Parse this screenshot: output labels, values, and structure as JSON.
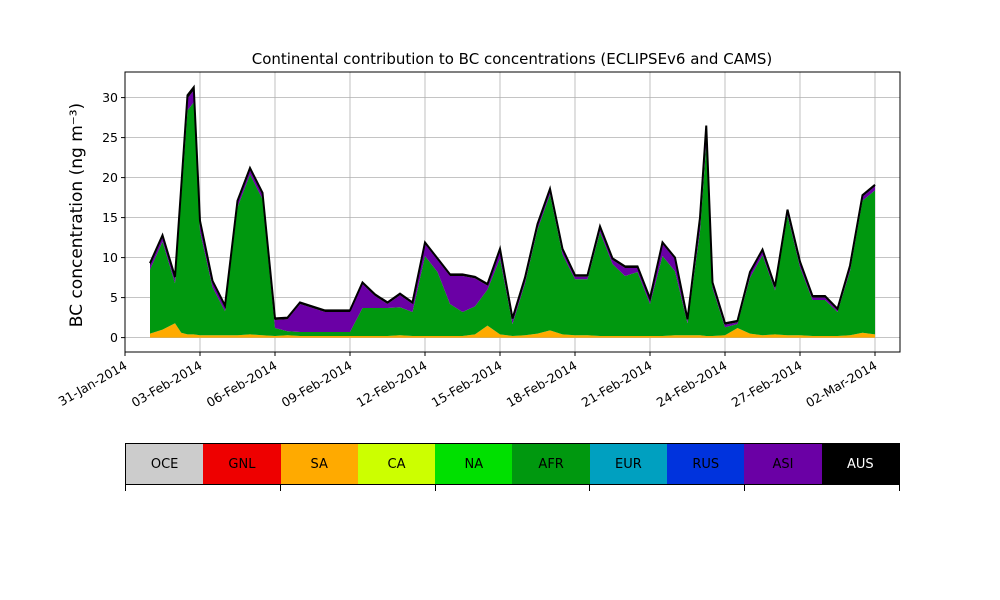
{
  "chart_data": {
    "type": "area",
    "title": "Continental contribution to BC concentrations (ECLIPSEv6 and CAMS)",
    "ylabel": "BC concentration (ng m⁻³)",
    "ylim": [
      -1.8,
      33.2
    ],
    "xlim": [
      "2014-01-31",
      "2014-03-03"
    ],
    "yticks": [
      0,
      5,
      10,
      15,
      20,
      25,
      30
    ],
    "xticks": [
      "31-Jan-2014",
      "03-Feb-2014",
      "06-Feb-2014",
      "09-Feb-2014",
      "12-Feb-2014",
      "15-Feb-2014",
      "18-Feb-2014",
      "21-Feb-2014",
      "24-Feb-2014",
      "27-Feb-2014",
      "02-Mar-2014"
    ],
    "grid": true,
    "x": [
      "2014-02-01",
      "2014-02-01 12:00",
      "2014-02-02",
      "2014-02-02 06:00",
      "2014-02-02 12:00",
      "2014-02-02 18:00",
      "2014-02-03",
      "2014-02-03 12:00",
      "2014-02-04",
      "2014-02-04 12:00",
      "2014-02-05",
      "2014-02-05 12:00",
      "2014-02-06",
      "2014-02-06 12:00",
      "2014-02-07",
      "2014-02-07 12:00",
      "2014-02-08",
      "2014-02-08 12:00",
      "2014-02-09",
      "2014-02-09 12:00",
      "2014-02-10",
      "2014-02-10 12:00",
      "2014-02-11",
      "2014-02-11 12:00",
      "2014-02-12",
      "2014-02-12 12:00",
      "2014-02-13",
      "2014-02-13 12:00",
      "2014-02-14",
      "2014-02-14 12:00",
      "2014-02-15",
      "2014-02-15 12:00",
      "2014-02-16",
      "2014-02-16 12:00",
      "2014-02-17",
      "2014-02-17 12:00",
      "2014-02-18",
      "2014-02-18 12:00",
      "2014-02-19",
      "2014-02-19 12:00",
      "2014-02-20",
      "2014-02-20 12:00",
      "2014-02-21",
      "2014-02-21 12:00",
      "2014-02-22",
      "2014-02-22 12:00",
      "2014-02-23",
      "2014-02-23 06:00",
      "2014-02-23 12:00",
      "2014-02-24",
      "2014-02-24 12:00",
      "2014-02-25",
      "2014-02-25 12:00",
      "2014-02-26",
      "2014-02-26 12:00",
      "2014-02-27",
      "2014-02-27 12:00",
      "2014-02-28",
      "2014-02-28 12:00",
      "2014-03-01",
      "2014-03-01 12:00",
      "2014-03-02"
    ],
    "series": [
      {
        "name": "SA",
        "color": "#ffaa00",
        "values": [
          0.5,
          1.0,
          1.8,
          0.6,
          0.4,
          0.4,
          0.3,
          0.3,
          0.3,
          0.3,
          0.4,
          0.3,
          0.2,
          0.3,
          0.2,
          0.2,
          0.2,
          0.2,
          0.2,
          0.2,
          0.2,
          0.2,
          0.3,
          0.2,
          0.2,
          0.2,
          0.2,
          0.2,
          0.4,
          1.5,
          0.4,
          0.2,
          0.3,
          0.5,
          0.9,
          0.4,
          0.3,
          0.3,
          0.2,
          0.2,
          0.2,
          0.2,
          0.2,
          0.2,
          0.3,
          0.3,
          0.3,
          0.2,
          0.2,
          0.3,
          1.2,
          0.5,
          0.3,
          0.4,
          0.3,
          0.3,
          0.2,
          0.2,
          0.2,
          0.3,
          0.6,
          0.4
        ]
      },
      {
        "name": "AFR",
        "color": "#00980f",
        "values": [
          8.0,
          11.0,
          5.0,
          17.0,
          28.0,
          29.0,
          13.0,
          6.0,
          3.0,
          16.0,
          20.0,
          17.0,
          1.0,
          0.5,
          0.5,
          0.5,
          0.5,
          0.5,
          0.5,
          3.5,
          3.5,
          3.5,
          3.5,
          3.0,
          10.0,
          8.0,
          4.0,
          3.0,
          3.5,
          4.5,
          9.5,
          1.5,
          6.5,
          13.0,
          17.0,
          10.0,
          7.0,
          7.0,
          13.0,
          9.0,
          7.5,
          8.0,
          4.0,
          10.0,
          8.0,
          1.5,
          13.0,
          24.0,
          6.0,
          1.0,
          0.5,
          7.0,
          10.0,
          5.5,
          15.0,
          8.5,
          4.5,
          4.5,
          3.0,
          8.0,
          16.5,
          18.0
        ]
      },
      {
        "name": "ASI",
        "color": "#6a00a5",
        "values": [
          0.5,
          0.5,
          0.5,
          1.0,
          1.5,
          1.5,
          1.0,
          0.5,
          0.5,
          0.5,
          0.5,
          0.5,
          1.0,
          1.5,
          3.5,
          3.0,
          2.5,
          2.5,
          2.5,
          3.0,
          1.5,
          0.5,
          1.5,
          1.0,
          1.5,
          1.5,
          3.5,
          4.5,
          3.5,
          0.5,
          1.0,
          0.5,
          0.5,
          0.5,
          0.5,
          0.5,
          0.3,
          0.3,
          0.5,
          0.5,
          1.0,
          0.5,
          0.5,
          1.5,
          1.5,
          0.3,
          1.5,
          2.0,
          0.5,
          0.3,
          0.2,
          0.5,
          0.5,
          0.3,
          0.5,
          0.5,
          0.3,
          0.3,
          0.2,
          0.5,
          0.5,
          0.5
        ]
      },
      {
        "name": "AUS",
        "color": "#000000",
        "values": [
          0.3,
          0.3,
          0.3,
          0.3,
          0.4,
          0.4,
          0.3,
          0.3,
          0.2,
          0.3,
          0.3,
          0.3,
          0.2,
          0.2,
          0.2,
          0.2,
          0.2,
          0.2,
          0.2,
          0.2,
          0.2,
          0.2,
          0.2,
          0.2,
          0.2,
          0.2,
          0.2,
          0.2,
          0.2,
          0.2,
          0.2,
          0.2,
          0.2,
          0.2,
          0.2,
          0.2,
          0.2,
          0.2,
          0.2,
          0.2,
          0.2,
          0.2,
          0.2,
          0.2,
          0.2,
          0.2,
          0.2,
          0.3,
          0.2,
          0.2,
          0.2,
          0.2,
          0.2,
          0.2,
          0.2,
          0.2,
          0.2,
          0.2,
          0.2,
          0.2,
          0.2,
          0.2
        ]
      }
    ],
    "legend": {
      "placement": "bottom",
      "entries": [
        {
          "name": "OCE",
          "color": "#cccccc"
        },
        {
          "name": "GNL",
          "color": "#ee0000"
        },
        {
          "name": "SA",
          "color": "#ffaa00"
        },
        {
          "name": "CA",
          "color": "#ccff00"
        },
        {
          "name": "NA",
          "color": "#00e000"
        },
        {
          "name": "AFR",
          "color": "#00980f"
        },
        {
          "name": "EUR",
          "color": "#00a0c0"
        },
        {
          "name": "RUS",
          "color": "#0033dd"
        },
        {
          "name": "ASI",
          "color": "#6a00a5"
        },
        {
          "name": "AUS",
          "color": "#000000"
        }
      ]
    }
  }
}
